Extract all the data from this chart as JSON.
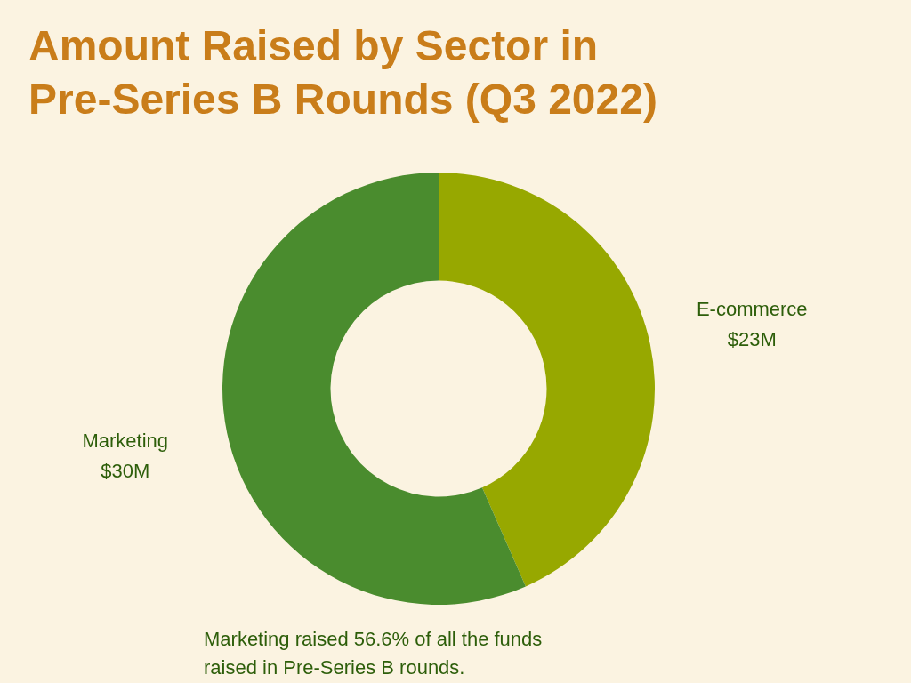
{
  "chart_data": {
    "type": "donut",
    "title": "Amount Raised by Sector in Pre-Series B Rounds (Q3 2022)",
    "categories": [
      "E-commerce",
      "Marketing"
    ],
    "values": [
      23,
      30
    ],
    "colors": [
      "#97a800",
      "#4a8c2e"
    ],
    "value_labels": [
      "$23M",
      "$30M"
    ],
    "annotations": [
      "Marketing raised 56.6% of all the funds raised in Pre-Series B rounds."
    ]
  }
}
